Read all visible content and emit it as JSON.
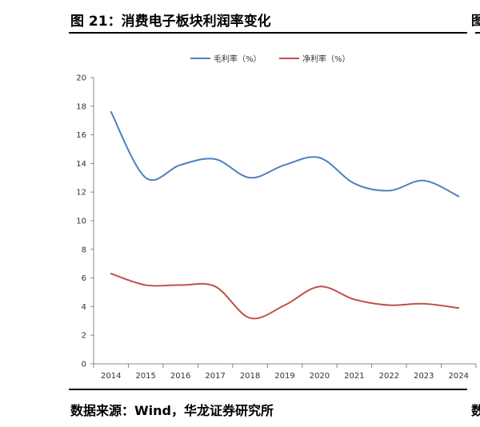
{
  "figure": {
    "title": "图 21：消费电子板块利润率变化",
    "source": "数据来源：Wind，华龙证券研究所",
    "edge_glyph_top": "图",
    "edge_glyph_bottom": "数"
  },
  "chart_data": {
    "type": "line",
    "title": "",
    "xlabel": "",
    "ylabel": "",
    "categories": [
      "2014",
      "2015",
      "2016",
      "2017",
      "2018",
      "2019",
      "2020",
      "2021",
      "2022",
      "2023",
      "2024"
    ],
    "ylim": [
      0,
      20
    ],
    "yticks": [
      0,
      2,
      4,
      6,
      8,
      10,
      12,
      14,
      16,
      18,
      20
    ],
    "grid": false,
    "legend_position": "top-center",
    "series": [
      {
        "name": "毛利率（%）",
        "color": "#4f81bd",
        "values": [
          17.6,
          13.0,
          13.9,
          14.3,
          13.0,
          13.9,
          14.4,
          12.6,
          12.1,
          12.8,
          11.7
        ]
      },
      {
        "name": "净利率（%）",
        "color": "#c0504d",
        "values": [
          6.3,
          5.5,
          5.5,
          5.4,
          3.2,
          4.1,
          5.4,
          4.5,
          4.1,
          4.2,
          3.9
        ]
      }
    ]
  }
}
